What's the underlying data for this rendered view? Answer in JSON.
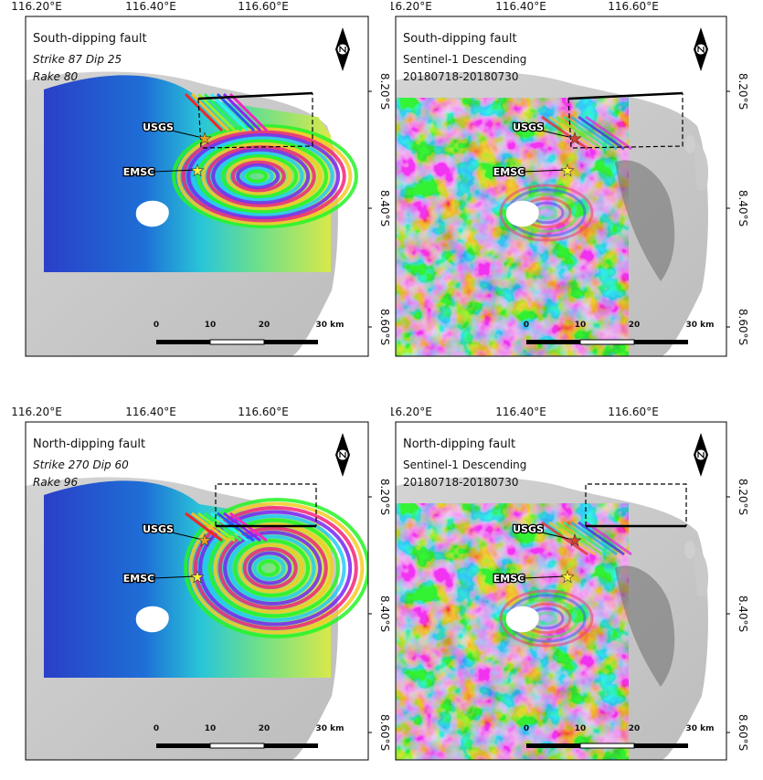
{
  "longitude_labels": [
    "116.20°E",
    "116.40°E",
    "116.60°E"
  ],
  "latitude_labels": [
    "8.20°S",
    "8.40°S",
    "8.60°S"
  ],
  "scale_labels": [
    "0",
    "10",
    "20",
    "30 km"
  ],
  "panels": [
    {
      "title": "South-dipping fault",
      "lines": [
        "Strike 87 Dip 25",
        "Rake 80"
      ],
      "markers": [
        "USGS",
        "EMSC"
      ]
    },
    {
      "title": "South-dipping fault",
      "lines": [
        "Sentinel-1 Descending",
        "20180718-20180730"
      ],
      "markers": [
        "USGS",
        "EMSC"
      ]
    },
    {
      "title": "North-dipping fault",
      "lines": [
        "Strike 270 Dip 60",
        "Rake 96"
      ],
      "markers": [
        "USGS",
        "EMSC"
      ]
    },
    {
      "title": "North-dipping fault",
      "lines": [
        "Sentinel-1 Descending",
        "20180718-20180730"
      ],
      "markers": [
        "USGS",
        "EMSC"
      ]
    }
  ]
}
